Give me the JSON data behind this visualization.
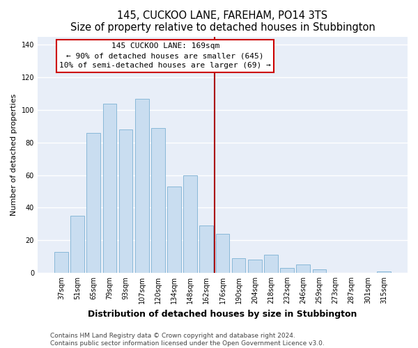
{
  "title": "145, CUCKOO LANE, FAREHAM, PO14 3TS",
  "subtitle": "Size of property relative to detached houses in Stubbington",
  "xlabel": "Distribution of detached houses by size in Stubbington",
  "ylabel": "Number of detached properties",
  "bar_labels": [
    "37sqm",
    "51sqm",
    "65sqm",
    "79sqm",
    "93sqm",
    "107sqm",
    "120sqm",
    "134sqm",
    "148sqm",
    "162sqm",
    "176sqm",
    "190sqm",
    "204sqm",
    "218sqm",
    "232sqm",
    "246sqm",
    "259sqm",
    "273sqm",
    "287sqm",
    "301sqm",
    "315sqm"
  ],
  "bar_heights": [
    13,
    35,
    86,
    104,
    88,
    107,
    89,
    53,
    60,
    29,
    24,
    9,
    8,
    11,
    3,
    5,
    2,
    0,
    0,
    0,
    1
  ],
  "bar_color": "#c9ddf0",
  "bar_edge_color": "#89b8d8",
  "vline_color": "#aa0000",
  "annotation_line1": "145 CUCKOO LANE: 169sqm",
  "annotation_line2": "← 90% of detached houses are smaller (645)",
  "annotation_line3": "10% of semi-detached houses are larger (69) →",
  "annotation_box_color": "#ffffff",
  "annotation_box_edge": "#cc0000",
  "ylim": [
    0,
    145
  ],
  "footer1": "Contains HM Land Registry data © Crown copyright and database right 2024.",
  "footer2": "Contains public sector information licensed under the Open Government Licence v3.0.",
  "bg_color": "#ffffff",
  "plot_bg_color": "#e8eef8",
  "grid_color": "#ffffff",
  "title_fontsize": 10.5,
  "subtitle_fontsize": 9.5,
  "xlabel_fontsize": 9,
  "ylabel_fontsize": 8,
  "tick_fontsize": 7,
  "footer_fontsize": 6.5,
  "annot_fontsize": 8
}
